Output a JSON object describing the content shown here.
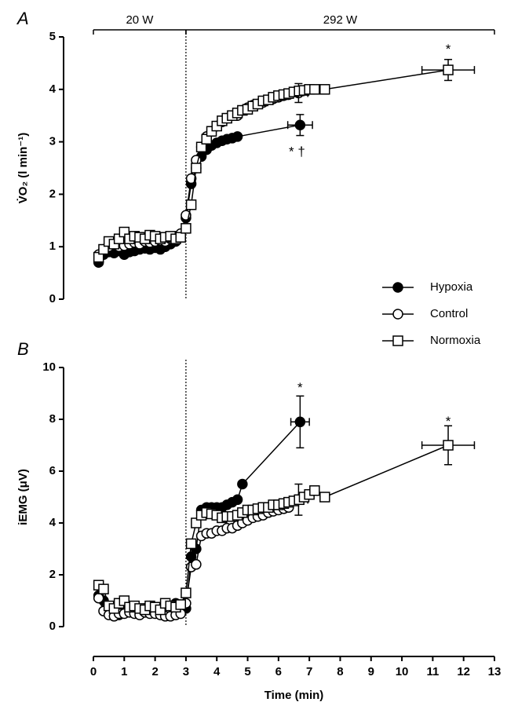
{
  "chart_data": [
    {
      "type": "line",
      "panel_label": "A",
      "y_label": "V̇O₂ (l min⁻¹)",
      "phases": [
        {
          "label": "20 W",
          "start": 0,
          "end": 3
        },
        {
          "label": "292 W",
          "start": 3,
          "end": 13
        }
      ],
      "divider_x": 3,
      "xlim": [
        0,
        13
      ],
      "ylim": [
        0,
        5
      ],
      "yticks": [
        0,
        1,
        2,
        3,
        4,
        5
      ],
      "legend": "lower right",
      "series": [
        {
          "name": "Hypoxia",
          "marker": "filled-circle",
          "color": "#000000",
          "x": [
            0.17,
            0.33,
            0.5,
            0.67,
            0.83,
            1,
            1.17,
            1.33,
            1.5,
            1.67,
            1.83,
            2,
            2.17,
            2.33,
            2.5,
            2.67,
            2.83,
            3,
            3.17,
            3.33,
            3.5,
            3.67,
            3.83,
            4,
            4.17,
            4.33,
            4.5,
            4.67
          ],
          "values": [
            0.7,
            0.85,
            0.9,
            0.88,
            0.92,
            0.85,
            0.9,
            0.92,
            0.95,
            0.97,
            0.95,
            0.98,
            0.95,
            1.0,
            1.05,
            1.1,
            1.2,
            1.55,
            2.2,
            2.5,
            2.72,
            2.85,
            2.93,
            2.98,
            3.02,
            3.05,
            3.07,
            3.1
          ],
          "end": {
            "x": 6.7,
            "value": 3.32,
            "x_error": 0.4,
            "y_error": 0.2
          }
        },
        {
          "name": "Control",
          "marker": "open-circle",
          "color": "#000000",
          "x": [
            0.17,
            0.33,
            0.5,
            0.67,
            0.83,
            1,
            1.17,
            1.33,
            1.5,
            1.67,
            1.83,
            2,
            2.17,
            2.33,
            2.5,
            2.67,
            2.83,
            3,
            3.17,
            3.33,
            3.5,
            3.67,
            3.83,
            4,
            4.17,
            4.33,
            4.5,
            4.67,
            4.83,
            5,
            5.17,
            5.33,
            5.5,
            5.67,
            5.83,
            6,
            6.17,
            6.33
          ],
          "values": [
            0.85,
            0.95,
            1.0,
            1.05,
            1.0,
            1.02,
            1.05,
            1.08,
            1.05,
            1.1,
            1.08,
            1.1,
            1.12,
            1.1,
            1.15,
            1.15,
            1.25,
            1.6,
            2.3,
            2.65,
            2.9,
            3.1,
            3.2,
            3.3,
            3.38,
            3.45,
            3.5,
            3.5,
            3.6,
            3.65,
            3.7,
            3.72,
            3.75,
            3.8,
            3.82,
            3.85,
            3.88,
            3.9
          ],
          "end": {
            "x": 6.65,
            "value": 3.93,
            "x_error": 0.3,
            "y_error": 0.18
          }
        },
        {
          "name": "Normoxia",
          "marker": "open-square",
          "color": "#000000",
          "x": [
            0.17,
            0.33,
            0.5,
            0.67,
            0.83,
            1,
            1.17,
            1.33,
            1.5,
            1.67,
            1.83,
            2,
            2.17,
            2.33,
            2.5,
            2.67,
            2.83,
            3,
            3.17,
            3.33,
            3.5,
            3.67,
            3.83,
            4,
            4.17,
            4.33,
            4.5,
            4.67,
            4.83,
            5,
            5.17,
            5.33,
            5.5,
            5.67,
            5.83,
            6,
            6.17,
            6.33,
            6.5,
            6.67,
            6.83,
            7,
            7.17,
            7.5
          ],
          "values": [
            0.8,
            0.95,
            1.1,
            1.05,
            1.15,
            1.28,
            1.15,
            1.2,
            1.18,
            1.15,
            1.22,
            1.2,
            1.15,
            1.18,
            1.2,
            1.15,
            1.18,
            1.35,
            1.8,
            2.5,
            2.9,
            3.05,
            3.2,
            3.3,
            3.4,
            3.45,
            3.5,
            3.55,
            3.6,
            3.62,
            3.68,
            3.72,
            3.78,
            3.8,
            3.85,
            3.88,
            3.9,
            3.92,
            3.95,
            3.97,
            3.98,
            4.0,
            4.0,
            4.0
          ],
          "end": {
            "x": 11.5,
            "value": 4.37,
            "x_error": 0.85,
            "y_error": 0.2
          }
        }
      ],
      "annotations": [
        {
          "text": "*",
          "x": 11.5,
          "y": 4.75
        },
        {
          "text": "* †",
          "x": 6.6,
          "y": 2.8
        }
      ]
    },
    {
      "type": "line",
      "panel_label": "B",
      "y_label": "iEMG (μV)",
      "x_label": "Time (min)",
      "divider_x": 3,
      "xlim": [
        0,
        13
      ],
      "xticks": [
        0,
        1,
        2,
        3,
        4,
        5,
        6,
        7,
        8,
        9,
        10,
        11,
        12,
        13
      ],
      "ylim": [
        0,
        10
      ],
      "yticks": [
        0,
        2,
        4,
        6,
        8,
        10
      ],
      "series": [
        {
          "marker": "filled-circle",
          "color": "#000000",
          "x": [
            0.17,
            0.33,
            0.5,
            0.67,
            0.83,
            1,
            1.17,
            1.33,
            1.5,
            1.67,
            1.83,
            2,
            2.17,
            2.33,
            2.5,
            2.67,
            2.83,
            3,
            3.17,
            3.33,
            3.5,
            3.67,
            3.83,
            4,
            4.17,
            4.33,
            4.5,
            4.67,
            4.83
          ],
          "values": [
            1.2,
            1.0,
            0.6,
            0.5,
            0.45,
            0.6,
            0.7,
            0.55,
            0.6,
            0.7,
            0.8,
            0.75,
            0.7,
            0.85,
            0.8,
            0.9,
            0.85,
            0.7,
            2.7,
            3.0,
            4.5,
            4.6,
            4.6,
            4.6,
            4.6,
            4.7,
            4.8,
            4.9,
            5.5
          ],
          "end": {
            "x": 6.7,
            "value": 7.9,
            "x_error": 0.3,
            "y_error": 1.0
          }
        },
        {
          "marker": "open-circle",
          "color": "#000000",
          "x": [
            0.17,
            0.33,
            0.5,
            0.67,
            0.83,
            1,
            1.17,
            1.33,
            1.5,
            1.67,
            1.83,
            2,
            2.17,
            2.33,
            2.5,
            2.67,
            2.83,
            3,
            3.17,
            3.33,
            3.5,
            3.67,
            3.83,
            4,
            4.17,
            4.33,
            4.5,
            4.67,
            4.83,
            5,
            5.17,
            5.33,
            5.5,
            5.67,
            5.83,
            6,
            6.17,
            6.33
          ],
          "values": [
            1.1,
            0.6,
            0.45,
            0.4,
            0.5,
            0.5,
            0.55,
            0.5,
            0.45,
            0.55,
            0.5,
            0.5,
            0.45,
            0.4,
            0.4,
            0.45,
            0.5,
            0.9,
            2.3,
            2.4,
            3.5,
            3.6,
            3.6,
            3.7,
            3.7,
            3.8,
            3.8,
            3.9,
            4.0,
            4.1,
            4.2,
            4.25,
            4.3,
            4.4,
            4.45,
            4.5,
            4.55,
            4.6
          ],
          "end": {
            "x": 6.65,
            "value": 4.9,
            "x_error": 0.3,
            "y_error": 0.6
          }
        },
        {
          "marker": "open-square",
          "color": "#000000",
          "x": [
            0.17,
            0.33,
            0.5,
            0.67,
            0.83,
            1,
            1.17,
            1.33,
            1.5,
            1.67,
            1.83,
            2,
            2.17,
            2.33,
            2.5,
            2.67,
            2.83,
            3,
            3.17,
            3.33,
            3.5,
            3.67,
            3.83,
            4,
            4.17,
            4.33,
            4.5,
            4.67,
            4.83,
            5,
            5.17,
            5.33,
            5.5,
            5.67,
            5.83,
            6,
            6.17,
            6.33,
            6.5,
            6.67,
            6.83,
            7,
            7.17,
            7.5
          ],
          "values": [
            1.6,
            1.45,
            0.8,
            0.7,
            0.9,
            1.0,
            0.75,
            0.8,
            0.7,
            0.65,
            0.8,
            0.75,
            0.65,
            0.9,
            0.8,
            0.75,
            0.85,
            1.3,
            3.2,
            4.0,
            4.3,
            4.4,
            4.35,
            4.3,
            4.2,
            4.25,
            4.25,
            4.3,
            4.4,
            4.5,
            4.5,
            4.55,
            4.6,
            4.6,
            4.7,
            4.7,
            4.75,
            4.8,
            4.85,
            4.9,
            5.0,
            5.1,
            5.25,
            5.0
          ],
          "end": {
            "x": 11.5,
            "value": 7.0,
            "x_error": 0.85,
            "y_error": 0.75
          }
        }
      ],
      "annotations": [
        {
          "text": "*",
          "x": 6.7,
          "y": 9.2
        },
        {
          "text": "*",
          "x": 11.5,
          "y": 7.9
        }
      ]
    }
  ]
}
